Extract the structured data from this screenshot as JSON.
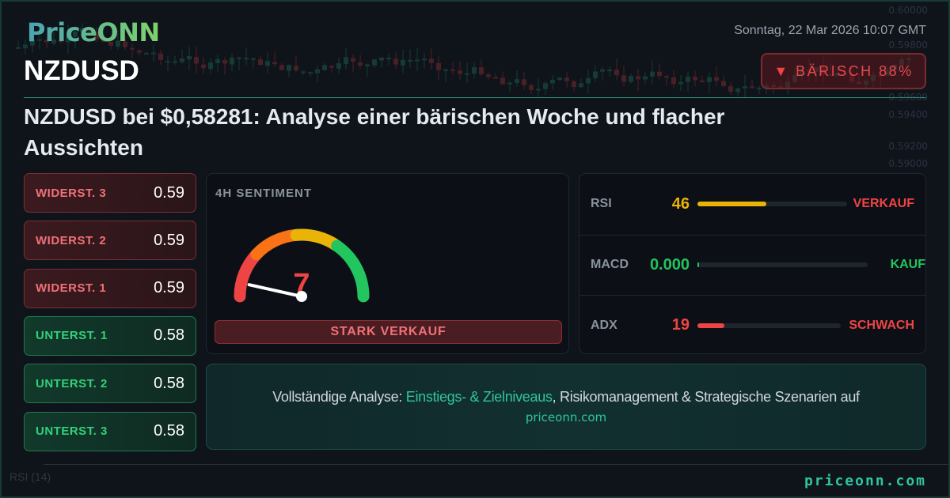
{
  "brand": {
    "logo": "PriceONN",
    "footer_url": "priceonn.com"
  },
  "header": {
    "symbol": "NZDUSD",
    "datetime": "Sonntag, 22 Mar 2026 10:07 GMT",
    "badge": {
      "icon": "triangle-down-icon",
      "label": "BÄRISCH 88%",
      "color": "#e5484d"
    }
  },
  "headline": "NZDUSD bei $0,58281: Analyse einer bärischen Woche und flacher Aussichten",
  "levels": [
    {
      "label": "WIDERST. 3",
      "value": "0.59",
      "type": "resistance"
    },
    {
      "label": "WIDERST. 2",
      "value": "0.59",
      "type": "resistance"
    },
    {
      "label": "WIDERST. 1",
      "value": "0.59",
      "type": "resistance"
    },
    {
      "label": "UNTERST. 1",
      "value": "0.58",
      "type": "support"
    },
    {
      "label": "UNTERST. 2",
      "value": "0.58",
      "type": "support"
    },
    {
      "label": "UNTERST. 3",
      "value": "0.58",
      "type": "support"
    }
  ],
  "sentiment": {
    "title": "4H SENTIMENT",
    "value": "7",
    "value_pct": 7,
    "label": "STARK VERKAUF",
    "colors": [
      "#ef4444",
      "#f97316",
      "#eab308",
      "#22c55e"
    ]
  },
  "indicators": [
    {
      "name": "RSI",
      "value": "46",
      "fill_pct": 46,
      "signal": "VERKAUF",
      "value_color": "#eab308",
      "signal_color": "#ef4444"
    },
    {
      "name": "MACD",
      "value": "0.000",
      "fill_pct": 0,
      "signal": "KAUF",
      "value_color": "#22c55e",
      "signal_color": "#22c55e"
    },
    {
      "name": "ADX",
      "value": "19",
      "fill_pct": 19,
      "signal": "SCHWACH",
      "value_color": "#ef4444",
      "signal_color": "#ef4444"
    }
  ],
  "cta": {
    "prefix": "Vollständige Analyse: ",
    "highlight": "Einstiegs- & Zielniveaus",
    "suffix": ", Risikomanagement & Strategische Szenarien auf",
    "url": "priceonn.com"
  },
  "background_chart": {
    "axis_labels": [
      "0.60000",
      "0.59800",
      "0.59600",
      "0.59400",
      "0.59200",
      "0.59000"
    ],
    "indicator_label": "RSI (14)"
  }
}
